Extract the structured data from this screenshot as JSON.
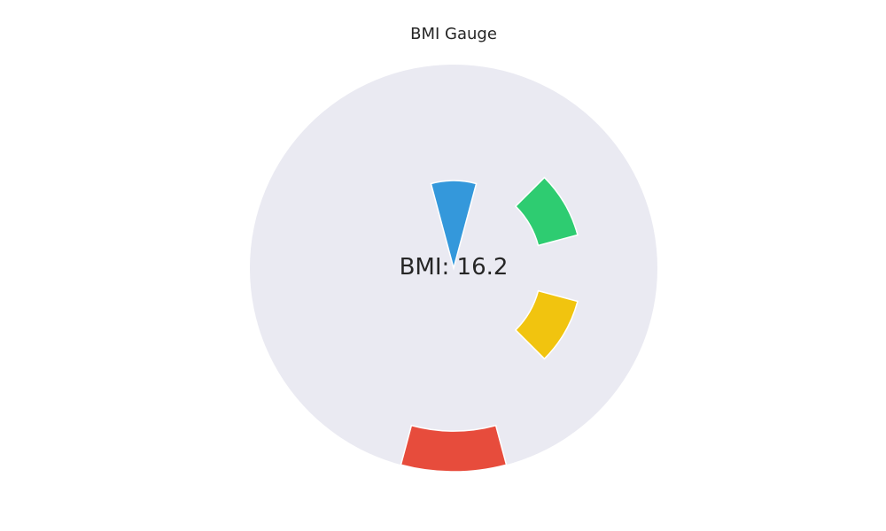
{
  "chart_data": {
    "type": "pie",
    "title": "BMI Gauge",
    "center_label": "BMI: 16.2",
    "value": 16.2,
    "background_color": "#eaeaf2",
    "segments": [
      {
        "name": "indicator",
        "color": "#3498db",
        "start_deg": -15,
        "end_deg": 15,
        "inner_frac": 0.0,
        "outer_frac": 0.43
      },
      {
        "name": "green-band",
        "color": "#2ecc71",
        "start_deg": 45,
        "end_deg": 75,
        "inner_frac": 0.43,
        "outer_frac": 0.63
      },
      {
        "name": "yellow-band",
        "color": "#f1c40f",
        "start_deg": 105,
        "end_deg": 135,
        "inner_frac": 0.43,
        "outer_frac": 0.63
      },
      {
        "name": "red-band",
        "color": "#e74c3c",
        "start_deg": 165,
        "end_deg": 195,
        "inner_frac": 0.8,
        "outer_frac": 1.0
      }
    ]
  }
}
